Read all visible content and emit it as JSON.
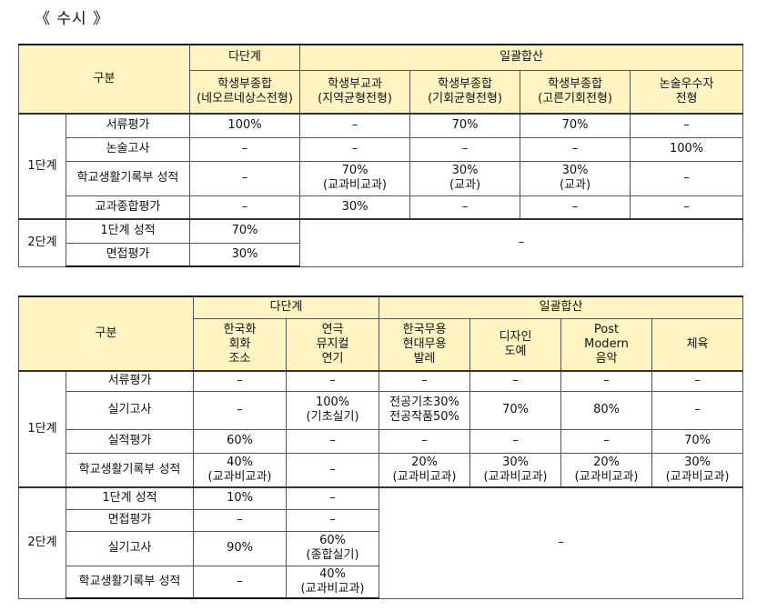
{
  "section_title": "《 수시 》",
  "t1": {
    "header": {
      "category": "구분",
      "group_multi": "다단계",
      "group_bulk": "일괄합산",
      "columns": [
        [
          "학생부종합",
          "(네오르네상스전형)"
        ],
        [
          "학생부교과",
          "(지역균형전형)"
        ],
        [
          "학생부종합",
          "(기회균형전형)"
        ],
        [
          "학생부종합",
          "(고른기회전형)"
        ],
        [
          "논술우수자",
          "전형"
        ]
      ]
    },
    "stage1": "1단계",
    "stage2": "2단계",
    "rows": [
      {
        "label": "서류평가",
        "cells": [
          [
            "100%"
          ],
          [
            "–"
          ],
          [
            "70%"
          ],
          [
            "70%"
          ],
          [
            "–"
          ]
        ]
      },
      {
        "label": "논술고사",
        "cells": [
          [
            "–"
          ],
          [
            "–"
          ],
          [
            "–"
          ],
          [
            "–"
          ],
          [
            "100%"
          ]
        ]
      },
      {
        "label": "학교생활기록부 성적",
        "cells": [
          [
            "–"
          ],
          [
            "70%",
            "(교과비교과)"
          ],
          [
            "30%",
            "(교과)"
          ],
          [
            "30%",
            "(교과)"
          ],
          [
            "–"
          ]
        ]
      },
      {
        "label": "교과종합평가",
        "cells": [
          [
            "–"
          ],
          [
            "30%"
          ],
          [
            "–"
          ],
          [
            "–"
          ],
          [
            "–"
          ]
        ]
      }
    ],
    "stage2_rows": [
      {
        "label": "1단계 성적",
        "value": "70%"
      },
      {
        "label": "면접평가",
        "value": "30%"
      }
    ],
    "stage2_merged": "–"
  },
  "t2": {
    "header": {
      "category": "구분",
      "group_multi": "다단계",
      "group_bulk": "일괄합산",
      "columns": [
        [
          "한국화",
          "회화",
          "조소"
        ],
        [
          "연극",
          "뮤지컬",
          "연기"
        ],
        [
          "한국무용",
          "현대무용",
          "발레"
        ],
        [
          "디자인",
          "도예"
        ],
        [
          "Post",
          "Modern",
          "음악"
        ],
        [
          "체육"
        ]
      ]
    },
    "stage1": "1단계",
    "stage2": "2단계",
    "rows": [
      {
        "label": "서류평가",
        "cells": [
          [
            "–"
          ],
          [
            "–"
          ],
          [
            "–"
          ],
          [
            "–"
          ],
          [
            "–"
          ],
          [
            "–"
          ]
        ]
      },
      {
        "label": "실기고사",
        "cells": [
          [
            "–"
          ],
          [
            "100%",
            "(기초실기)"
          ],
          [
            "전공기초30%",
            "전공작품50%"
          ],
          [
            "70%"
          ],
          [
            "80%"
          ],
          [
            "–"
          ]
        ]
      },
      {
        "label": "실적평가",
        "cells": [
          [
            "60%"
          ],
          [
            "–"
          ],
          [
            "–"
          ],
          [
            "–"
          ],
          [
            "–"
          ],
          [
            "70%"
          ]
        ]
      },
      {
        "label": "학교생활기록부 성적",
        "cells": [
          [
            "40%",
            "(교과비교과)"
          ],
          [
            "–"
          ],
          [
            "20%",
            "(교과비교과)"
          ],
          [
            "30%",
            "(교과비교과)"
          ],
          [
            "20%",
            "(교과비교과)"
          ],
          [
            "30%",
            "(교과비교과)"
          ]
        ]
      }
    ],
    "stage2_rows": [
      {
        "label": "1단계 성적",
        "cells": [
          [
            "10%"
          ],
          [
            "–"
          ]
        ]
      },
      {
        "label": "면접평가",
        "cells": [
          [
            "–"
          ],
          [
            "–"
          ]
        ]
      },
      {
        "label": "실기고사",
        "cells": [
          [
            "90%"
          ],
          [
            "60%",
            "(종합실기)"
          ]
        ]
      },
      {
        "label": "학교생활기록부 성적",
        "cells": [
          [
            "–"
          ],
          [
            "40%",
            "(교과비교과)"
          ]
        ]
      }
    ],
    "stage2_merged": "–"
  }
}
